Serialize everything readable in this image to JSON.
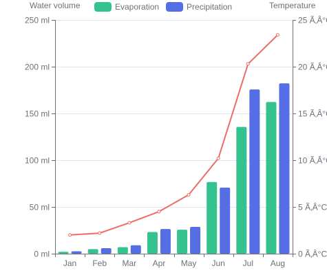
{
  "chart_data": {
    "type": "bar",
    "categories": [
      "Jan",
      "Feb",
      "Mar",
      "Apr",
      "May",
      "Jun",
      "Jul",
      "Aug"
    ],
    "series": [
      {
        "name": "Evaporation",
        "type": "bar",
        "axis": "left",
        "color": "#34c38f",
        "values": [
          2.0,
          4.9,
          7.0,
          23.2,
          25.6,
          76.7,
          135.6,
          162.2
        ]
      },
      {
        "name": "Precipitation",
        "type": "bar",
        "axis": "left",
        "color": "#556ee6",
        "values": [
          2.6,
          5.9,
          9.0,
          26.4,
          28.7,
          70.7,
          175.6,
          182.2
        ]
      },
      {
        "name": "",
        "type": "line",
        "axis": "right",
        "color": "#ef6b6b",
        "values": [
          2.0,
          2.2,
          3.3,
          4.5,
          6.3,
          10.2,
          20.3,
          23.4
        ]
      }
    ],
    "left_axis": {
      "name": "Water volume",
      "min": 0,
      "max": 250,
      "interval": 50,
      "ticks": [
        "0 ml",
        "50 ml",
        "100 ml",
        "150 ml",
        "200 ml",
        "250 ml"
      ]
    },
    "right_axis": {
      "name": "Temperature",
      "min": 0,
      "max": 25,
      "interval": 5,
      "ticks": [
        "0 Ã‚Â°C",
        "5 Ã‚Â°C",
        "10 Ã‚Â°C",
        "15 Ã‚Â°C",
        "20 Ã‚Â°C",
        "25 Ã‚Â°C"
      ]
    },
    "legend": {
      "position": "top"
    },
    "grid": true
  }
}
